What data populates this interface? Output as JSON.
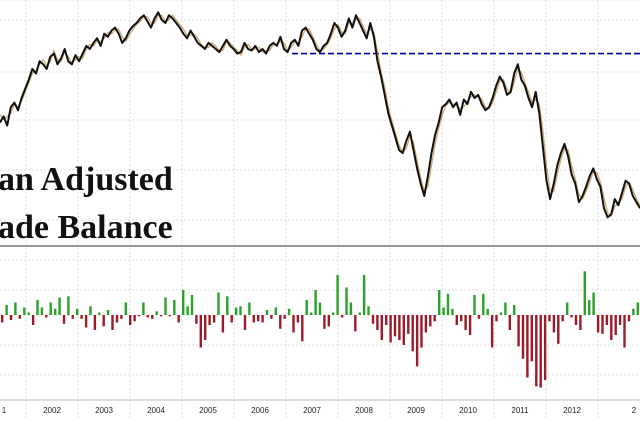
{
  "chart_data": {
    "type": "line+bar",
    "title_lines": [
      "an Adjusted",
      "ade Balance"
    ],
    "x_ticks": [
      "1",
      "2002",
      "2003",
      "2004",
      "2005",
      "2006",
      "2007",
      "2008",
      "2009",
      "2010",
      "2011",
      "2012",
      "2"
    ],
    "grid": true,
    "colors": {
      "main_line": "#111111",
      "secondary_line": "#c9a36a",
      "reference_line": "#0000a0",
      "bar_positive": "#2aa12a",
      "bar_negative": "#9b1b2a",
      "separator": "#999999"
    },
    "reference_level": 125,
    "series": [
      {
        "values": [
          80,
          84,
          78,
          90,
          93,
          88,
          96,
          102,
          108,
          115,
          112,
          120,
          118,
          115,
          123,
          125,
          118,
          122,
          128,
          120,
          118,
          124,
          120,
          125,
          130,
          128,
          132,
          135,
          130,
          138,
          136,
          140,
          142,
          138,
          132,
          135,
          140,
          143,
          145,
          148,
          150,
          146,
          142,
          148,
          152,
          147,
          145,
          150,
          148,
          145,
          142,
          138,
          135,
          140,
          136,
          132,
          130,
          128,
          132,
          130,
          128,
          126,
          130,
          134,
          130,
          128,
          125,
          126,
          132,
          128,
          127,
          130,
          126,
          128,
          125,
          130,
          132,
          130,
          136,
          128,
          126,
          132,
          134,
          130,
          140,
          142,
          138,
          134,
          128,
          126,
          130,
          132,
          138,
          145,
          142,
          136,
          140,
          148,
          142,
          150,
          145,
          140,
          135,
          145,
          136,
          120,
          110,
          98,
          86,
          78,
          70,
          62,
          60,
          68,
          74,
          62,
          50,
          40,
          32,
          45,
          60,
          72,
          80,
          90,
          92,
          95,
          90,
          93,
          85,
          95,
          92,
          100,
          96,
          98,
          92,
          88,
          90,
          96,
          104,
          110,
          106,
          98,
          100,
          112,
          118,
          108,
          104,
          96,
          90,
          100,
          86,
          64,
          42,
          30,
          40,
          52,
          60,
          66,
          58,
          46,
          40,
          28,
          32,
          38,
          45,
          50,
          43,
          38,
          24,
          18,
          20,
          30,
          26,
          34,
          42,
          40,
          32,
          28,
          24
        ]
      },
      {
        "values": [
          85,
          82,
          84,
          86,
          92,
          90,
          94,
          100,
          106,
          112,
          114,
          118,
          121,
          117,
          120,
          127,
          121,
          120,
          126,
          123,
          119,
          121,
          123,
          122,
          128,
          131,
          130,
          133,
          133,
          135,
          139,
          138,
          140,
          141,
          136,
          133,
          137,
          141,
          144,
          146,
          149,
          149,
          145,
          145,
          150,
          150,
          146,
          147,
          150,
          147,
          144,
          141,
          137,
          137,
          138,
          135,
          131,
          129,
          129,
          132,
          130,
          127,
          127,
          133,
          132,
          129,
          127,
          124,
          129,
          131,
          128,
          128,
          129,
          126,
          127,
          127,
          131,
          131,
          133,
          132,
          127,
          129,
          133,
          132,
          136,
          141,
          141,
          136,
          131,
          127,
          128,
          131,
          135,
          141,
          144,
          139,
          138,
          145,
          145,
          147,
          148,
          143,
          138,
          141,
          139,
          126,
          113,
          103,
          90,
          81,
          73,
          65,
          61,
          63,
          71,
          67,
          55,
          44,
          35,
          38,
          52,
          66,
          76,
          85,
          91,
          93,
          92,
          91,
          89,
          90,
          94,
          97,
          98,
          97,
          95,
          90,
          89,
          93,
          100,
          107,
          108,
          102,
          99,
          106,
          115,
          113,
          106,
          100,
          93,
          95,
          92,
          75,
          52,
          36,
          35,
          46,
          56,
          63,
          62,
          52,
          43,
          33,
          30,
          35,
          41,
          48,
          47,
          41,
          31,
          21,
          19,
          25,
          28,
          30,
          38,
          41,
          36,
          30,
          26
        ]
      },
      {
        "values": [
          -6,
          8,
          -4,
          10,
          -3,
          6,
          2,
          -8,
          12,
          6,
          -2,
          10,
          5,
          14,
          -7,
          15,
          -3,
          5,
          -3,
          -10,
          7,
          -12,
          2,
          -9,
          4,
          -12,
          -6,
          -3,
          10,
          -8,
          -5,
          -1,
          10,
          -2,
          -3,
          3,
          -1,
          14,
          -1,
          12,
          -6,
          20,
          7,
          16,
          -7,
          -26,
          -20,
          -8,
          -6,
          18,
          -14,
          15,
          -6,
          6,
          7,
          -12,
          10,
          -6,
          -5,
          -6,
          4,
          -3,
          6,
          -11,
          -3,
          5,
          -14,
          -6,
          -21,
          12,
          2,
          20,
          10,
          -11,
          -9,
          2,
          32,
          -2,
          22,
          10,
          -13,
          2,
          32,
          7,
          -7,
          -12,
          -20,
          -8,
          -22,
          -17,
          -20,
          -24,
          -15,
          -29,
          -41,
          -26,
          -14,
          -9,
          -5,
          20,
          6,
          17,
          5,
          -8,
          -5,
          -12,
          -16,
          16,
          -3,
          17,
          5,
          -26,
          -5,
          2,
          10,
          -12,
          8,
          -25,
          -35,
          -50,
          -37,
          -57,
          -58,
          -52,
          -5,
          -14,
          -23,
          -5,
          10,
          -2,
          -8,
          -12,
          35,
          12,
          18,
          -14,
          -15,
          -8,
          -20,
          -16,
          -8,
          -26,
          -5,
          5,
          10
        ]
      }
    ]
  }
}
